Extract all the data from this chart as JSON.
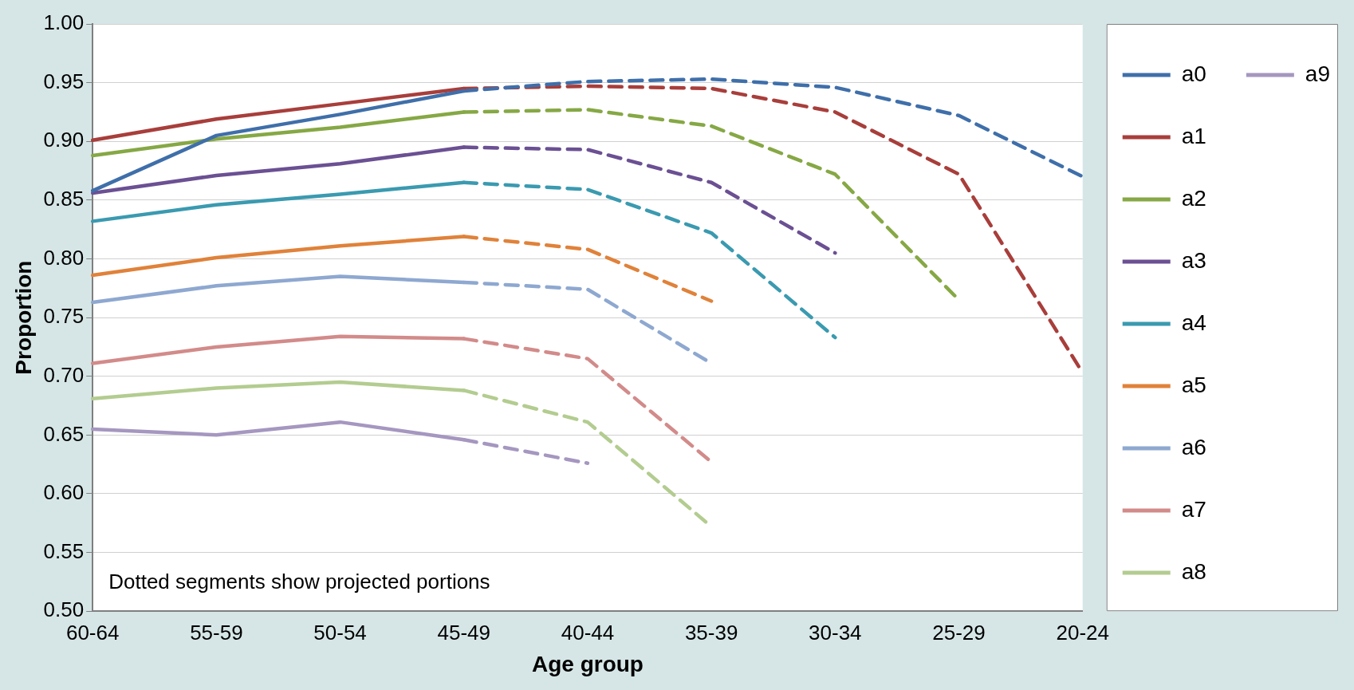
{
  "chart_data": {
    "type": "line",
    "xlabel": "Age group",
    "ylabel": "Proportion",
    "categories": [
      "60-64",
      "55-59",
      "50-54",
      "45-49",
      "40-44",
      "35-39",
      "30-34",
      "25-29",
      "20-24"
    ],
    "ylim": [
      0.5,
      1.0
    ],
    "yticks": [
      {
        "value": 0.5,
        "label": "0.50"
      },
      {
        "value": 0.55,
        "label": "0.55"
      },
      {
        "value": 0.6,
        "label": "0.60"
      },
      {
        "value": 0.65,
        "label": "0.65"
      },
      {
        "value": 0.7,
        "label": "0.70"
      },
      {
        "value": 0.75,
        "label": "0.75"
      },
      {
        "value": 0.8,
        "label": "0.80"
      },
      {
        "value": 0.85,
        "label": "0.85"
      },
      {
        "value": 0.9,
        "label": "0.90"
      },
      {
        "value": 0.95,
        "label": "0.95"
      },
      {
        "value": 1.0,
        "label": "1.00"
      }
    ],
    "grid": "y",
    "legend": "right",
    "marker": "none",
    "annotations": [
      "Dotted segments show projected portions"
    ],
    "series": [
      {
        "name": "a0",
        "color": "#3f6faa",
        "line_style": "solid",
        "values": [
          0.858,
          0.905,
          0.923,
          0.943,
          null,
          null,
          null,
          null,
          null
        ]
      },
      {
        "name": "a1",
        "color": "#a83e3b",
        "line_style": "solid",
        "values": [
          0.901,
          0.919,
          0.932,
          0.945,
          null,
          null,
          null,
          null,
          null
        ]
      },
      {
        "name": "a2",
        "color": "#86a845",
        "line_style": "solid",
        "values": [
          0.888,
          0.902,
          0.912,
          0.925,
          null,
          null,
          null,
          null,
          null
        ]
      },
      {
        "name": "a3",
        "color": "#6b5093",
        "line_style": "solid",
        "values": [
          0.856,
          0.871,
          0.881,
          0.895,
          null,
          null,
          null,
          null,
          null
        ]
      },
      {
        "name": "a4",
        "color": "#3a9ab0",
        "line_style": "solid",
        "values": [
          0.832,
          0.846,
          0.855,
          0.865,
          null,
          null,
          null,
          null,
          null
        ]
      },
      {
        "name": "a5",
        "color": "#e0823a",
        "line_style": "solid",
        "values": [
          0.786,
          0.801,
          0.811,
          0.819,
          null,
          null,
          null,
          null,
          null
        ]
      },
      {
        "name": "a6",
        "color": "#8ea8d0",
        "line_style": "solid",
        "values": [
          0.763,
          0.777,
          0.785,
          0.78,
          null,
          null,
          null,
          null,
          null
        ]
      },
      {
        "name": "a7",
        "color": "#d28b8a",
        "line_style": "solid",
        "values": [
          0.711,
          0.725,
          0.734,
          0.732,
          null,
          null,
          null,
          null,
          null
        ]
      },
      {
        "name": "a8",
        "color": "#b3cc90",
        "line_style": "solid",
        "values": [
          0.681,
          0.69,
          0.695,
          0.688,
          null,
          null,
          null,
          null,
          null
        ]
      },
      {
        "name": "a9",
        "color": "#a597c0",
        "line_style": "solid",
        "values": [
          0.655,
          0.65,
          0.661,
          0.646,
          null,
          null,
          null,
          null,
          null
        ]
      },
      {
        "color": "#3f6faa",
        "line_style": "dashed",
        "values": [
          null,
          null,
          null,
          0.943,
          0.951,
          0.953,
          0.946,
          0.922,
          0.87
        ]
      },
      {
        "color": "#a83e3b",
        "line_style": "dashed",
        "values": [
          null,
          null,
          null,
          0.945,
          0.947,
          0.945,
          0.925,
          0.872,
          0.703
        ]
      },
      {
        "color": "#86a845",
        "line_style": "dashed",
        "values": [
          null,
          null,
          null,
          0.925,
          0.927,
          0.913,
          0.872,
          0.765,
          null
        ]
      },
      {
        "color": "#6b5093",
        "line_style": "dashed",
        "values": [
          null,
          null,
          null,
          0.895,
          0.893,
          0.865,
          0.805,
          null,
          null
        ]
      },
      {
        "color": "#3a9ab0",
        "line_style": "dashed",
        "values": [
          null,
          null,
          null,
          0.865,
          0.859,
          0.822,
          0.733,
          null,
          null
        ]
      },
      {
        "color": "#e0823a",
        "line_style": "dashed",
        "values": [
          null,
          null,
          null,
          0.819,
          0.808,
          0.764,
          null,
          null,
          null
        ]
      },
      {
        "color": "#8ea8d0",
        "line_style": "dashed",
        "values": [
          null,
          null,
          null,
          0.78,
          0.774,
          0.711,
          null,
          null,
          null
        ]
      },
      {
        "color": "#d28b8a",
        "line_style": "dashed",
        "values": [
          null,
          null,
          null,
          0.732,
          0.715,
          0.627,
          null,
          null,
          null
        ]
      },
      {
        "color": "#b3cc90",
        "line_style": "dashed",
        "values": [
          null,
          null,
          null,
          0.688,
          0.661,
          0.572,
          null,
          null,
          null
        ]
      },
      {
        "color": "#a597c0",
        "line_style": "dashed",
        "values": [
          null,
          null,
          null,
          0.646,
          0.626,
          null,
          null,
          null,
          null
        ]
      }
    ]
  }
}
